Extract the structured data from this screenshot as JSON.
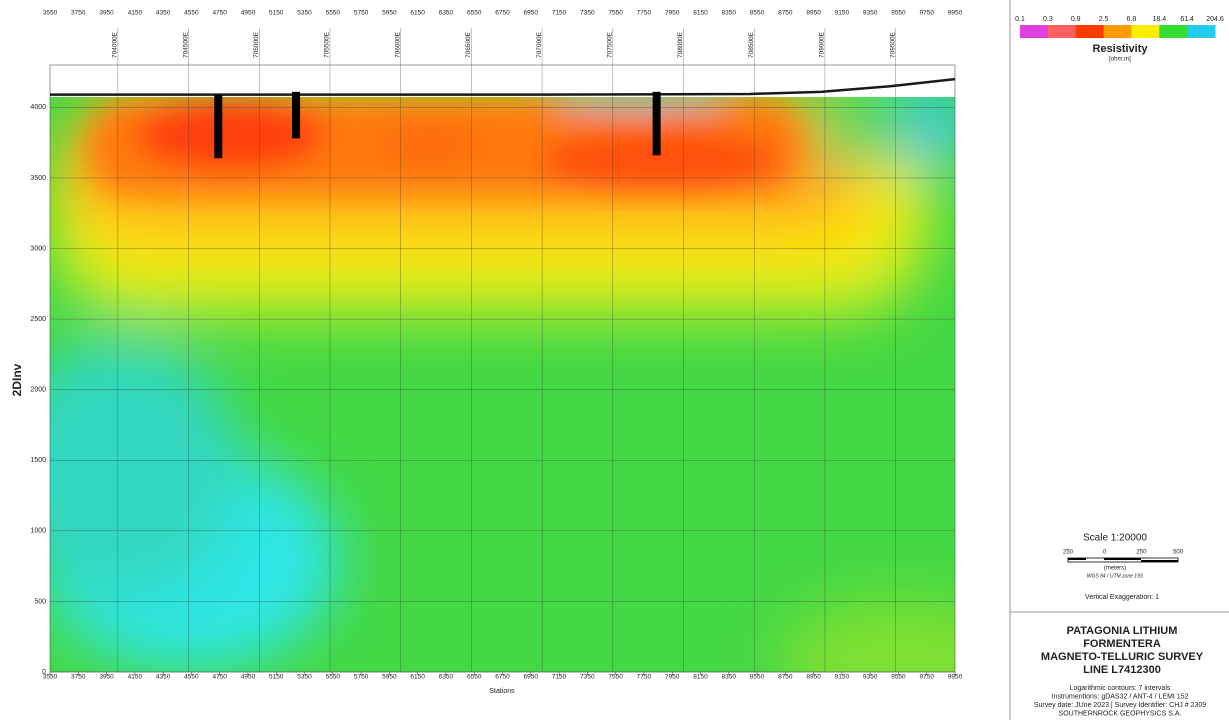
{
  "chart_data": {
    "type": "contour",
    "xlabel": "Stations",
    "ylabel": "2DInv",
    "xlim": [
      3550,
      9950
    ],
    "ylim": [
      0,
      4300
    ],
    "xticks": [
      3550,
      3750,
      3950,
      4150,
      4350,
      4550,
      4750,
      4950,
      5150,
      5350,
      5550,
      5750,
      5950,
      6150,
      6350,
      6550,
      6750,
      6950,
      7150,
      7350,
      7550,
      7750,
      7950,
      8150,
      8350,
      8550,
      8750,
      8950,
      9150,
      9350,
      9550,
      9750,
      9950
    ],
    "yticks": [
      0,
      500,
      1000,
      1500,
      2000,
      2500,
      3000,
      3500,
      4000
    ],
    "x2ticks": [
      {
        "value": 4030,
        "label": "704000E"
      },
      {
        "value": 4530,
        "label": "704500E"
      },
      {
        "value": 5030,
        "label": "705000E"
      },
      {
        "value": 5530,
        "label": "705500E"
      },
      {
        "value": 6030,
        "label": "706000E"
      },
      {
        "value": 6530,
        "label": "706500E"
      },
      {
        "value": 7030,
        "label": "707000E"
      },
      {
        "value": 7530,
        "label": "707500E"
      },
      {
        "value": 8030,
        "label": "708000E"
      },
      {
        "value": 8530,
        "label": "708500E"
      },
      {
        "value": 9030,
        "label": "709000E"
      },
      {
        "value": 9530,
        "label": "709500E"
      }
    ],
    "grid": true,
    "topography": {
      "x": [
        3550,
        5000,
        7000,
        8500,
        9000,
        9500,
        9950
      ],
      "y": [
        4090,
        4090,
        4090,
        4095,
        4110,
        4150,
        4200
      ],
      "color": "#1a1a1a"
    },
    "boreholes": [
      {
        "x": 4740,
        "top": 4090,
        "bottom": 3640
      },
      {
        "x": 5290,
        "top": 4110,
        "bottom": 3780
      },
      {
        "x": 7840,
        "top": 4110,
        "bottom": 3660
      }
    ],
    "colorbar": {
      "title": "Resistivity",
      "unit": "[ohm.m]",
      "ticks": [
        "0.1",
        "0.3",
        "0.9",
        "2.5",
        "6.8",
        "18.4",
        "61.4",
        "204.6"
      ],
      "colors": [
        "#e040e0",
        "#ff6060",
        "#ff3a00",
        "#ff9a00",
        "#ffee00",
        "#33dd33",
        "#22ccee"
      ]
    }
  },
  "panel": {
    "scale": "Scale 1:20000",
    "scale_labels": [
      "250",
      "0",
      "250",
      "500"
    ],
    "scale_unit": "(meters)",
    "projection": "WGS 84 / UTM zone 19S",
    "exaggeration": "Vertical Exaggeration: 1",
    "title_lines": [
      "PATAGONIA LITHIUM",
      "FORMENTERA",
      "MAGNETO-TELLURIC SURVEY",
      "LINE L7412300"
    ],
    "notes": [
      "Logarithmic contours: 7 intervals",
      "Instrumentions: gDAS32 / ANT-4 / LEMI 152",
      "Survey date: JUne 2023 | Survey Identifier: CHJ # 2309",
      "SOUTHERNROCK GEOPHYSICS S.A."
    ]
  }
}
